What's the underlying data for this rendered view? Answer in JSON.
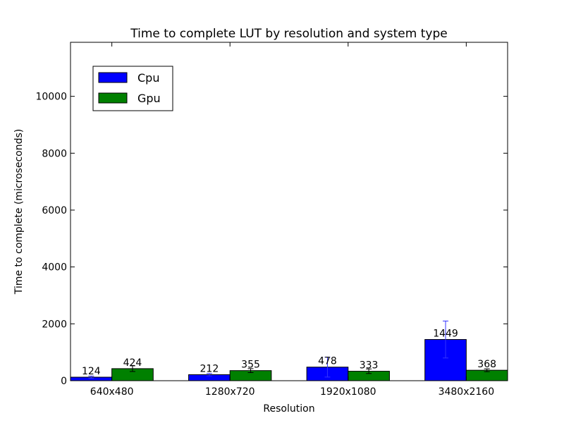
{
  "chart_data": {
    "type": "bar",
    "title": "Time to complete LUT by resolution and system type",
    "xlabel": "Resolution",
    "ylabel": "Time to complete (microseconds)",
    "categories": [
      "640x480",
      "1280x720",
      "1920x1080",
      "3480x2160"
    ],
    "ylim": [
      0,
      11900
    ],
    "yticks": [
      0,
      2000,
      4000,
      6000,
      8000,
      10000
    ],
    "legend_position": "top-left",
    "series": [
      {
        "name": "Cpu",
        "color": "#0000ff",
        "values": [
          124,
          212,
          478,
          1449
        ],
        "errors": [
          40,
          40,
          350,
          650
        ],
        "labels": [
          "124",
          "212",
          "478",
          "1449"
        ]
      },
      {
        "name": "Gpu",
        "color": "#008000",
        "values": [
          424,
          355,
          333,
          368
        ],
        "errors": [
          100,
          70,
          80,
          50
        ],
        "labels": [
          "424",
          "355",
          "333",
          "368"
        ]
      }
    ]
  }
}
